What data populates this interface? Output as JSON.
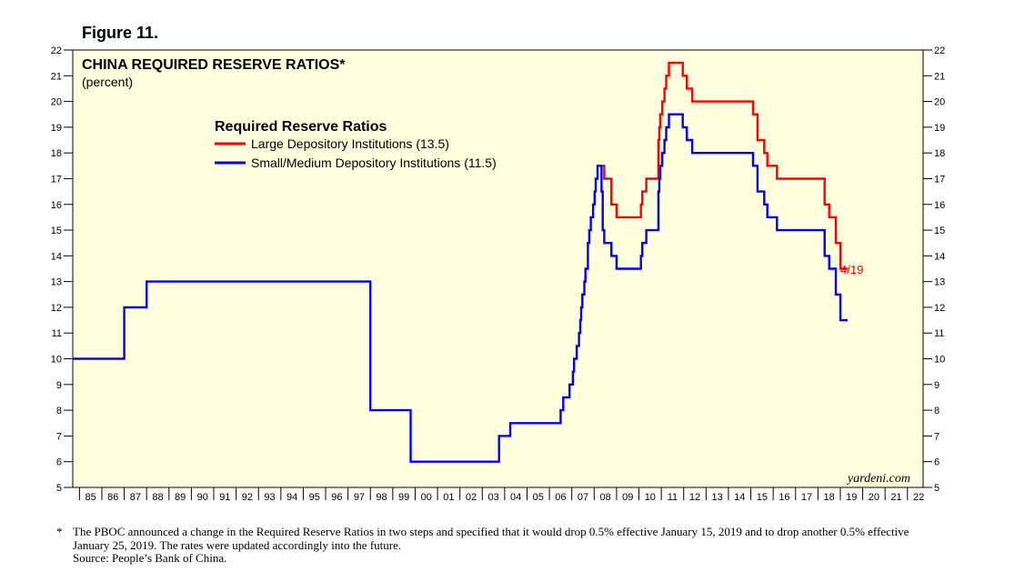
{
  "figure_label": "Figure 11.",
  "footnote_marker": "*",
  "footnote": "The PBOC announced a change in the Required Reserve Ratios in two steps and specified that it would drop 0.5% effective January 15, 2019 and to drop another 0.5% effective January 25, 2019. The rates were updated accordingly into the future.",
  "source": "Source: People’s Bank of China.",
  "chart_data": {
    "type": "line",
    "title": "CHINA REQUIRED RESERVE RATIOS*",
    "subtitle": "(percent)",
    "legend_title": "Required Reserve Ratios",
    "legend_placement": "top-left",
    "watermark": "yardeni.com",
    "end_label": "4/19",
    "background_color": "#ffffe0",
    "ylim": [
      5,
      22
    ],
    "xlim": [
      1984.7,
      2022.7
    ],
    "y_ticks": [
      5,
      6,
      7,
      8,
      9,
      10,
      11,
      12,
      13,
      14,
      15,
      16,
      17,
      18,
      19,
      20,
      21,
      22
    ],
    "x_tick_labels": [
      "85",
      "86",
      "87",
      "88",
      "89",
      "90",
      "91",
      "92",
      "93",
      "94",
      "95",
      "96",
      "97",
      "98",
      "99",
      "00",
      "01",
      "02",
      "03",
      "04",
      "05",
      "06",
      "07",
      "08",
      "09",
      "10",
      "11",
      "12",
      "13",
      "14",
      "15",
      "16",
      "17",
      "18",
      "19",
      "20",
      "21",
      "22"
    ],
    "grid": false,
    "series": [
      {
        "name": "Large Depository Institutions (13.5)",
        "color": "#ff0000",
        "x": [
          2008.38,
          2008.45,
          2008.77,
          2009.0,
          2010.0,
          2010.09,
          2010.15,
          2010.33,
          2010.37,
          2010.87,
          2010.91,
          2010.95,
          2011.04,
          2011.14,
          2011.22,
          2011.34,
          2011.45,
          2011.96,
          2012.14,
          2012.38,
          2013.0,
          2014.0,
          2015.1,
          2015.3,
          2015.48,
          2015.6,
          2015.74,
          2015.82,
          2016.17,
          2017.0,
          2018.0,
          2018.3,
          2018.5,
          2018.8,
          2019.0,
          2019.33
        ],
        "y": [
          17.5,
          17.0,
          16.0,
          15.5,
          15.5,
          16.0,
          16.5,
          17.0,
          17.0,
          18.5,
          19.0,
          19.5,
          20.0,
          20.5,
          21.0,
          21.5,
          21.5,
          21.0,
          20.5,
          20.0,
          20.0,
          20.0,
          19.5,
          18.5,
          18.5,
          18.0,
          17.5,
          17.5,
          17.0,
          17.0,
          17.0,
          16.0,
          15.5,
          14.5,
          13.5,
          13.5
        ]
      },
      {
        "name": "Small/Medium Depository Institutions (11.5)",
        "color": "#0000ff",
        "x": [
          1984.7,
          1987.0,
          1988.0,
          1998.0,
          1999.8,
          2003.75,
          2004.25,
          2006.5,
          2006.62,
          2006.9,
          2007.05,
          2007.1,
          2007.22,
          2007.32,
          2007.38,
          2007.42,
          2007.47,
          2007.56,
          2007.61,
          2007.72,
          2007.78,
          2007.85,
          2007.95,
          2008.02,
          2008.07,
          2008.15,
          2008.25,
          2008.33,
          2008.38,
          2008.45,
          2008.77,
          2009.0,
          2010.0,
          2010.09,
          2010.15,
          2010.33,
          2010.37,
          2010.87,
          2010.91,
          2010.95,
          2011.04,
          2011.14,
          2011.22,
          2011.34,
          2011.45,
          2011.96,
          2012.14,
          2012.38,
          2013.0,
          2014.0,
          2015.1,
          2015.3,
          2015.48,
          2015.6,
          2015.74,
          2015.82,
          2016.17,
          2017.0,
          2018.0,
          2018.3,
          2018.5,
          2018.8,
          2019.0,
          2019.33
        ],
        "y": [
          10.0,
          12.0,
          13.0,
          8.0,
          6.0,
          7.0,
          7.5,
          8.0,
          8.5,
          9.0,
          9.5,
          10.0,
          10.5,
          11.0,
          11.5,
          12.0,
          12.5,
          13.0,
          13.5,
          14.5,
          15.0,
          15.5,
          16.0,
          16.5,
          17.0,
          17.5,
          17.5,
          16.5,
          15.0,
          14.5,
          14.0,
          13.5,
          13.5,
          14.0,
          14.5,
          15.0,
          15.0,
          16.5,
          17.0,
          17.5,
          18.0,
          18.5,
          19.0,
          19.5,
          19.5,
          19.0,
          18.5,
          18.0,
          18.0,
          18.0,
          17.5,
          16.5,
          16.5,
          16.0,
          15.5,
          15.5,
          15.0,
          15.0,
          15.0,
          14.0,
          13.5,
          12.5,
          11.5,
          11.5
        ]
      }
    ]
  }
}
